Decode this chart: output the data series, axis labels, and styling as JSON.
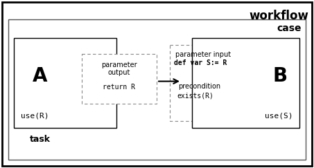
{
  "fig_width": 4.53,
  "fig_height": 2.43,
  "dpi": 100,
  "bg_color": "#ffffff",
  "title_workflow": "workflow",
  "title_case": "case",
  "title_task": "task",
  "label_A": "A",
  "label_B": "B",
  "label_useR": "use(R)",
  "label_useS": "use(S)",
  "label_param_output_line1": "parameter",
  "label_param_output_line2": "output",
  "label_return_R": "return R",
  "label_param_input": "parameter input",
  "label_def_var": "def var S:= R",
  "label_precondition": "precondition",
  "label_exists_R": "exists(R)",
  "outer_lw": 2.0,
  "inner_lw": 1.0,
  "dash_lw": 0.8
}
